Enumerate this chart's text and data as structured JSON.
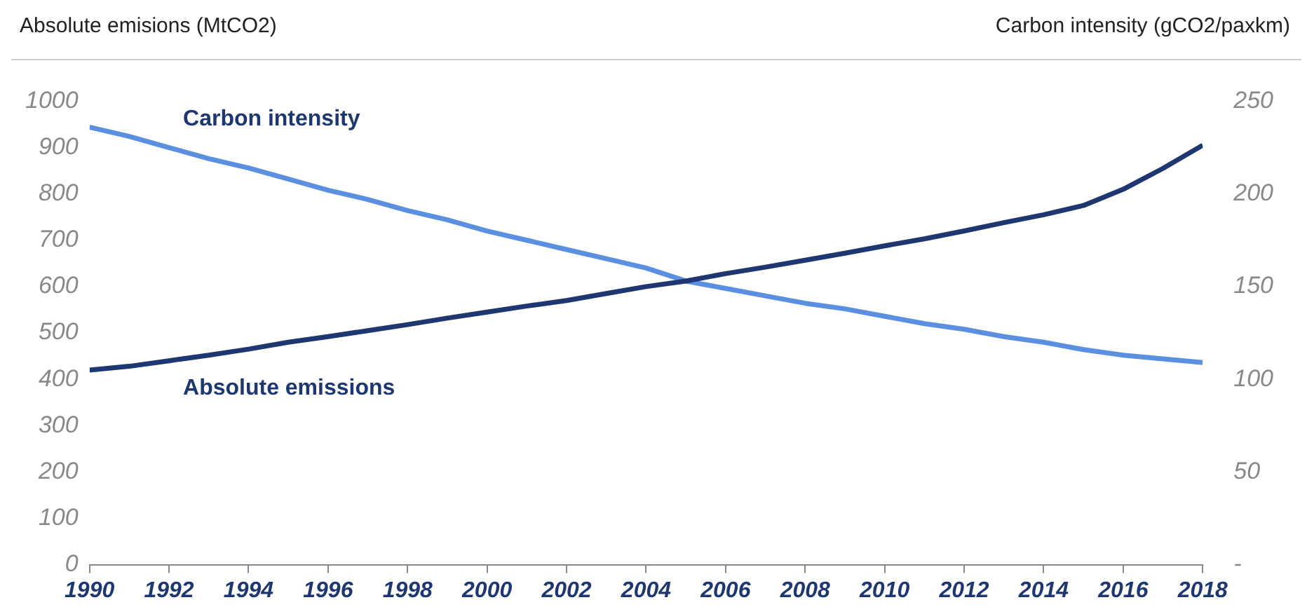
{
  "chart_data": {
    "type": "line",
    "ylabel": "Absolute emisions (MtCO2)",
    "y2label": "Carbon intensity (gCO2/paxkm)",
    "x": [
      1990,
      1991,
      1992,
      1993,
      1994,
      1995,
      1996,
      1997,
      1998,
      1999,
      2000,
      2001,
      2002,
      2003,
      2004,
      2005,
      2006,
      2007,
      2008,
      2009,
      2010,
      2011,
      2012,
      2013,
      2014,
      2015,
      2016,
      2017,
      2018
    ],
    "series": [
      {
        "name": "Absolute emissions",
        "color": "#1f3770",
        "values": [
          420,
          428,
          440,
          452,
          465,
          480,
          492,
          505,
          518,
          532,
          545,
          558,
          570,
          585,
          600,
          612,
          628,
          642,
          657,
          672,
          688,
          703,
          720,
          738,
          755,
          775,
          810,
          855,
          905
        ]
      },
      {
        "name": "Carbon intensity",
        "color": "#5b8fe0",
        "axis": "y2",
        "values": [
          236,
          231,
          225,
          219,
          214,
          208,
          202,
          197,
          191,
          186,
          180,
          175,
          170,
          165,
          160,
          153,
          149,
          145,
          141,
          138,
          134,
          130,
          127,
          123,
          120,
          116,
          113,
          111,
          109
        ]
      }
    ],
    "xlim": [
      1990,
      2018
    ],
    "xticks": [
      1990,
      1992,
      1994,
      1996,
      1998,
      2000,
      2002,
      2004,
      2006,
      2008,
      2010,
      2012,
      2014,
      2016,
      2018
    ],
    "ylim": [
      0,
      1000
    ],
    "yticks": [
      0,
      100,
      200,
      300,
      400,
      500,
      600,
      700,
      800,
      900,
      1000
    ],
    "y2lim": [
      0,
      250
    ],
    "y2ticks": [
      {
        "value": 0,
        "label": "-"
      },
      50,
      100,
      150,
      200,
      250
    ],
    "grid": false,
    "legend": false,
    "marker": "none",
    "line_style": "solid"
  }
}
